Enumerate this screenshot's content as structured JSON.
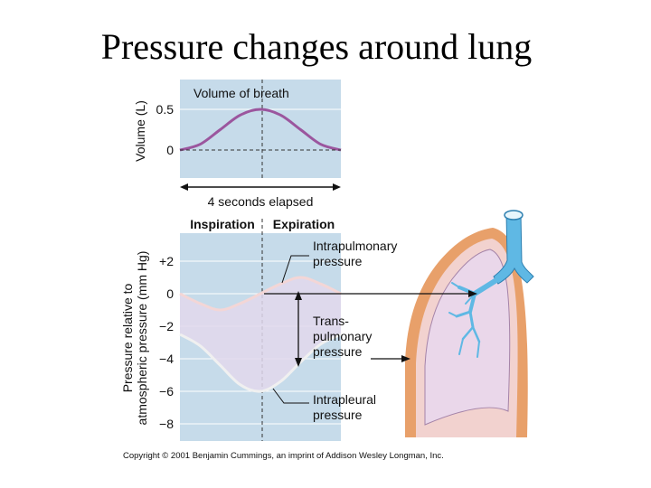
{
  "title": "Pressure changes around lung",
  "copyright": "Copyright © 2001 Benjamin Cummings, an imprint of Addison Wesley Longman, Inc.",
  "chart_data": [
    {
      "type": "line",
      "title": "Volume of breath",
      "xlabel": "4 seconds elapsed",
      "ylabel": "Volume (L)",
      "y_ticks": [
        "0.5",
        "0"
      ],
      "ylim": [
        0,
        0.6
      ],
      "xlim": [
        0,
        4
      ],
      "series": [
        {
          "color": "#9b569e",
          "x": [
            0,
            0.5,
            1,
            1.5,
            2,
            2.5,
            3,
            3.5,
            4
          ],
          "values": [
            0,
            0.07,
            0.25,
            0.43,
            0.5,
            0.43,
            0.25,
            0.07,
            0
          ]
        }
      ]
    },
    {
      "type": "line",
      "xlabel": "",
      "ylabel": "Pressure relative to atmospheric pressure (mm Hg)",
      "phase_labels": [
        "Inspiration",
        "Expiration"
      ],
      "y_ticks": [
        "+2",
        "0",
        "−2",
        "−4",
        "−6",
        "−8"
      ],
      "ylim": [
        -9,
        4
      ],
      "xlim": [
        0,
        4
      ],
      "series": [
        {
          "name": "Intrapulmonary pressure",
          "color": "#f3d6d6",
          "x": [
            0,
            0.5,
            1,
            1.5,
            2,
            2.5,
            3,
            3.5,
            4
          ],
          "values": [
            0,
            -0.6,
            -1,
            -0.6,
            0,
            0.6,
            1,
            0.6,
            0
          ]
        },
        {
          "name": "Intrapleural pressure",
          "color": "#f0f0f0",
          "x": [
            0,
            0.5,
            1,
            1.5,
            2,
            2.5,
            3,
            3.5,
            4
          ],
          "values": [
            -2.5,
            -3.2,
            -4.4,
            -5.6,
            -6,
            -5.4,
            -4.2,
            -3.1,
            -2.5
          ]
        }
      ],
      "annotations": [
        "Intrapulmonary pressure",
        "Trans-pulmonary pressure",
        "Intrapleural pressure"
      ]
    }
  ],
  "labels": {
    "intrapulmonary": [
      "Intrapulmonary",
      "pressure"
    ],
    "transpulmonary": [
      "Trans-",
      "pulmonary",
      "pressure"
    ],
    "intrapleural": [
      "Intrapleural",
      "pressure"
    ],
    "ylabel2": [
      "Pressure relative to",
      "atmospheric pressure (mm Hg)"
    ]
  },
  "colors": {
    "panel_bg": "#c6dbea",
    "lung_fill": "#ead7ea",
    "pleura": "#e8a06a",
    "airway": "#5fb8e4",
    "grid": "#ffffff"
  }
}
